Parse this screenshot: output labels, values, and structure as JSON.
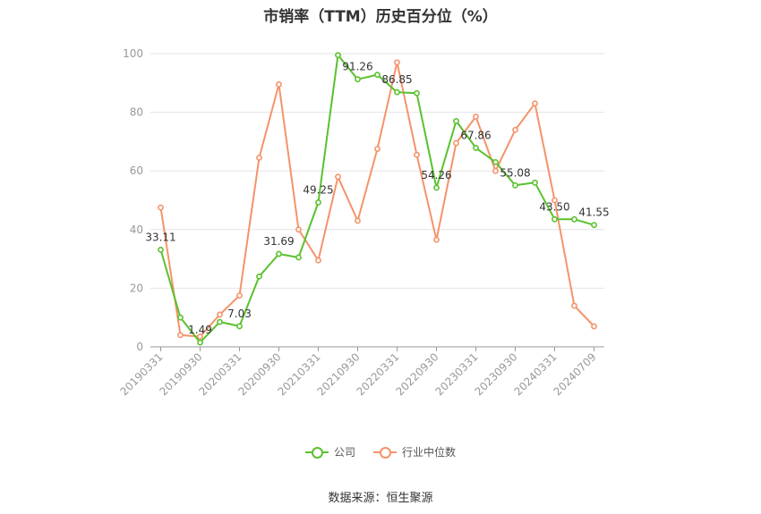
{
  "chart_data": {
    "type": "line",
    "title": "市销率（TTM）历史百分位（%）",
    "x": [
      "20190331",
      "20190630",
      "20190930",
      "20191231",
      "20200331",
      "20200630",
      "20200930",
      "20201231",
      "20210331",
      "20210630",
      "20210930",
      "20211231",
      "20220331",
      "20220630",
      "20220930",
      "20221231",
      "20230331",
      "20230630",
      "20230930",
      "20231231",
      "20240331",
      "20240630",
      "20240709"
    ],
    "xtick_labels": [
      "20190331",
      "20190930",
      "20200331",
      "20200930",
      "20210331",
      "20210930",
      "20220331",
      "20220930",
      "20230331",
      "20230930",
      "20240331",
      "20240709"
    ],
    "ylim": [
      0,
      100
    ],
    "yticks": [
      0,
      20,
      40,
      60,
      80,
      100
    ],
    "grid": true,
    "legend_position": "bottom",
    "series": [
      {
        "name": "公司",
        "color": "#5ac12e",
        "values": [
          33.11,
          10,
          1.49,
          8.5,
          7.03,
          24,
          31.69,
          30.5,
          49.25,
          99.5,
          91.26,
          92.8,
          86.85,
          86.5,
          54.26,
          77,
          67.86,
          63,
          55.08,
          56,
          43.5,
          43.5,
          41.55
        ],
        "labels": {
          "0": "33.11",
          "2": "1.49",
          "4": "7.03",
          "6": "31.69",
          "8": "49.25",
          "10": "91.26",
          "12": "86.85",
          "14": "54.26",
          "16": "67.86",
          "18": "55.08",
          "20": "43.50",
          "22": "41.55"
        }
      },
      {
        "name": "行业中位数",
        "color": "#f5936a",
        "values": [
          47.5,
          4,
          3.5,
          11,
          17.5,
          64.5,
          89.5,
          40,
          29.5,
          58,
          43,
          67.5,
          97,
          65.5,
          36.5,
          69.5,
          78.5,
          60,
          74,
          83,
          50,
          14,
          7
        ]
      }
    ]
  },
  "legend": {
    "company": "公司",
    "industry": "行业中位数"
  },
  "source": "数据来源：恒生聚源"
}
